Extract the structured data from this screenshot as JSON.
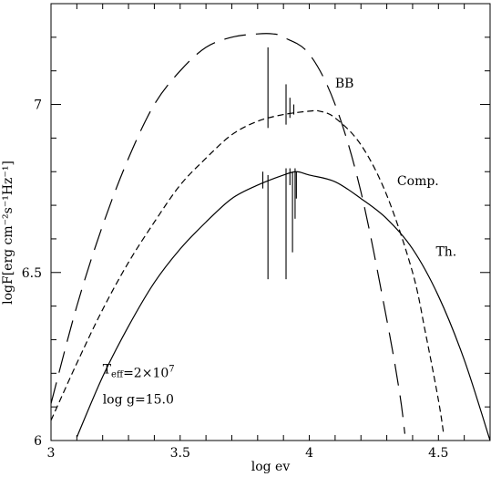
{
  "chart_data": {
    "type": "line",
    "xlabel": "log ev",
    "ylabel": "logF[erg cm⁻²s⁻¹Hz⁻¹]",
    "xlim": [
      3.0,
      4.7
    ],
    "ylim": [
      6.0,
      7.3
    ],
    "x_ticks": [
      {
        "value": 3.0,
        "label": "3"
      },
      {
        "value": 3.5,
        "label": "3.5"
      },
      {
        "value": 4.0,
        "label": "4"
      },
      {
        "value": 4.5,
        "label": "4.5"
      }
    ],
    "y_ticks": [
      {
        "value": 6.0,
        "label": "6"
      },
      {
        "value": 6.5,
        "label": "6.5"
      },
      {
        "value": 7.0,
        "label": "7"
      }
    ],
    "series": [
      {
        "name": "BB",
        "dash": "long",
        "x": [
          3.0,
          3.1,
          3.2,
          3.3,
          3.4,
          3.5,
          3.6,
          3.7,
          3.8,
          3.86,
          3.9,
          4.0,
          4.1,
          4.2,
          4.3,
          4.35,
          4.37
        ],
        "y": [
          6.11,
          6.4,
          6.64,
          6.84,
          7.0,
          7.1,
          7.17,
          7.2,
          7.21,
          7.21,
          7.2,
          7.15,
          7.0,
          6.74,
          6.36,
          6.14,
          6.02
        ]
      },
      {
        "name": "Comp.",
        "dash": "short",
        "x": [
          3.0,
          3.1,
          3.2,
          3.3,
          3.4,
          3.5,
          3.6,
          3.7,
          3.8,
          3.9,
          4.0,
          4.04,
          4.1,
          4.2,
          4.3,
          4.4,
          4.45,
          4.5,
          4.52
        ],
        "y": [
          6.06,
          6.23,
          6.39,
          6.53,
          6.65,
          6.76,
          6.84,
          6.91,
          6.95,
          6.97,
          6.98,
          6.98,
          6.96,
          6.88,
          6.73,
          6.5,
          6.32,
          6.12,
          6.02
        ]
      },
      {
        "name": "Th.",
        "dash": "solid",
        "x": [
          3.1,
          3.2,
          3.3,
          3.4,
          3.5,
          3.6,
          3.7,
          3.8,
          3.9,
          3.95,
          4.0,
          4.1,
          4.2,
          4.3,
          4.4,
          4.5,
          4.6,
          4.7
        ],
        "y": [
          6.01,
          6.19,
          6.34,
          6.47,
          6.57,
          6.65,
          6.72,
          6.76,
          6.79,
          6.8,
          6.79,
          6.77,
          6.72,
          6.66,
          6.57,
          6.43,
          6.24,
          6.0
        ]
      }
    ],
    "line_features": [
      {
        "x": 3.84,
        "y_top": 7.17,
        "y_bottom": 6.93
      },
      {
        "x": 3.91,
        "y_top": 7.06,
        "y_bottom": 6.94
      },
      {
        "x": 3.925,
        "y_top": 7.02,
        "y_bottom": 6.96
      },
      {
        "x": 3.94,
        "y_top": 7.0,
        "y_bottom": 6.97
      },
      {
        "x": 3.82,
        "y_top": 6.8,
        "y_bottom": 6.75
      },
      {
        "x": 3.84,
        "y_top": 6.79,
        "y_bottom": 6.48
      },
      {
        "x": 3.91,
        "y_top": 6.81,
        "y_bottom": 6.48
      },
      {
        "x": 3.925,
        "y_top": 6.81,
        "y_bottom": 6.76
      },
      {
        "x": 3.935,
        "y_top": 6.8,
        "y_bottom": 6.56
      },
      {
        "x": 3.945,
        "y_top": 6.81,
        "y_bottom": 6.66
      },
      {
        "x": 3.95,
        "y_top": 6.8,
        "y_bottom": 6.72
      }
    ],
    "series_labels": [
      {
        "text": "BB",
        "x": 4.1,
        "y": 7.05
      },
      {
        "text": "Comp.",
        "x": 4.34,
        "y": 6.76
      },
      {
        "text": "Th.",
        "x": 4.49,
        "y": 6.55
      }
    ],
    "annotations": [
      {
        "parts": [
          {
            "t": "T"
          },
          {
            "t": "eff",
            "sub": true
          },
          {
            "t": "=2×10"
          },
          {
            "t": "7",
            "sup": true
          }
        ],
        "x": 3.2,
        "y": 6.2
      },
      {
        "parts": [
          {
            "t": "log g=15.0"
          }
        ],
        "x": 3.2,
        "y": 6.11
      }
    ],
    "grid": false,
    "legend": "none"
  }
}
